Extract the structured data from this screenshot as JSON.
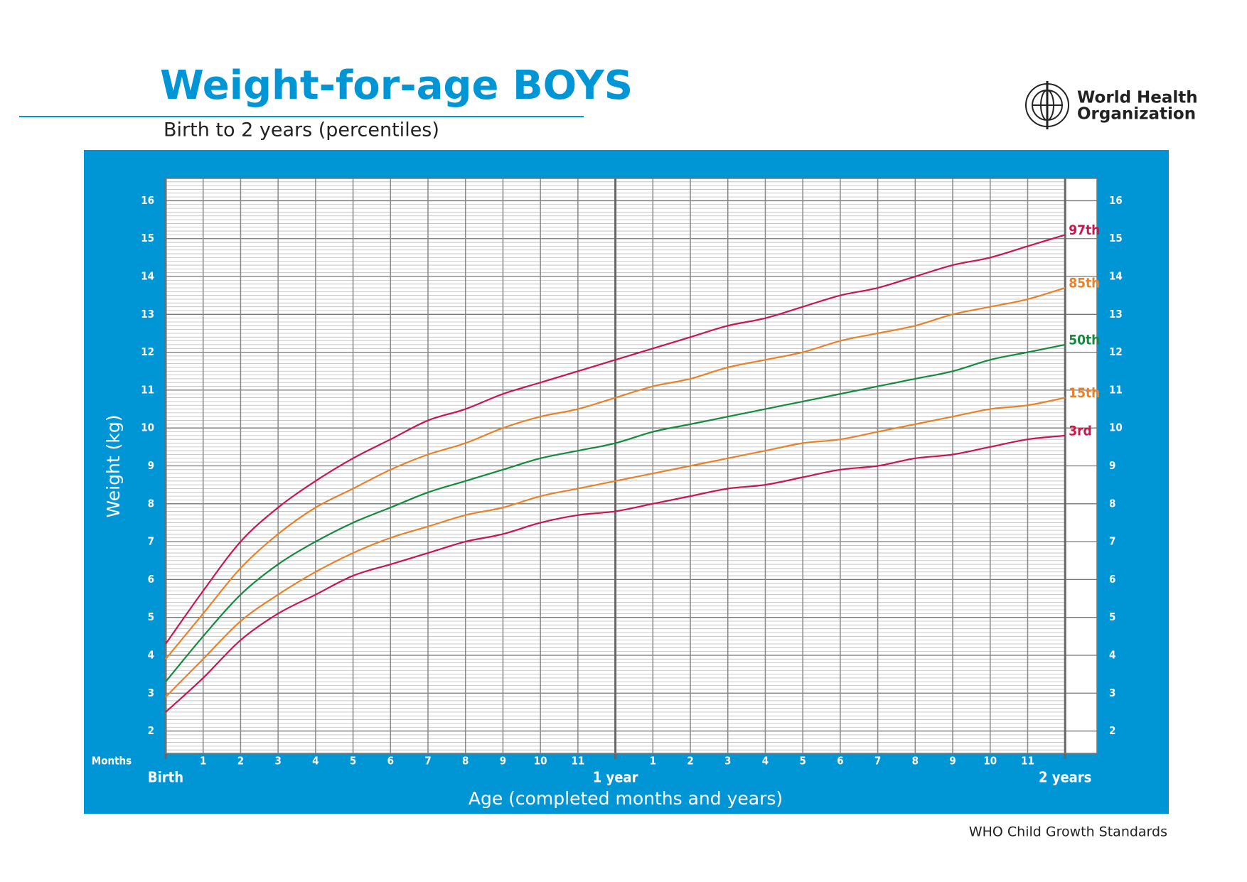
{
  "chart_data": {
    "type": "line",
    "title": "Weight-for-age BOYS",
    "subtitle": "Birth to 2 years (percentiles)",
    "logo_text": [
      "World Health",
      "Organization"
    ],
    "footer": "WHO Child Growth Standards",
    "y_label": "Weight (kg)",
    "x_label": "Age (completed months and years)",
    "x_unit_label": "Months",
    "x": [
      0,
      1,
      2,
      3,
      4,
      5,
      6,
      7,
      8,
      9,
      10,
      11,
      12,
      13,
      14,
      15,
      16,
      17,
      18,
      19,
      20,
      21,
      22,
      23,
      24
    ],
    "series": [
      {
        "name": "3rd",
        "color": "#c8174d",
        "values": [
          2.5,
          3.4,
          4.4,
          5.1,
          5.6,
          6.1,
          6.4,
          6.7,
          7.0,
          7.2,
          7.5,
          7.7,
          7.8,
          8.0,
          8.2,
          8.4,
          8.5,
          8.7,
          8.9,
          9.0,
          9.2,
          9.3,
          9.5,
          9.7,
          9.8
        ]
      },
      {
        "name": "15th",
        "color": "#e8822a",
        "values": [
          2.9,
          3.9,
          4.9,
          5.6,
          6.2,
          6.7,
          7.1,
          7.4,
          7.7,
          7.9,
          8.2,
          8.4,
          8.6,
          8.8,
          9.0,
          9.2,
          9.4,
          9.6,
          9.7,
          9.9,
          10.1,
          10.3,
          10.5,
          10.6,
          10.8
        ]
      },
      {
        "name": "50th",
        "color": "#138a3e",
        "values": [
          3.3,
          4.5,
          5.6,
          6.4,
          7.0,
          7.5,
          7.9,
          8.3,
          8.6,
          8.9,
          9.2,
          9.4,
          9.6,
          9.9,
          10.1,
          10.3,
          10.5,
          10.7,
          10.9,
          11.1,
          11.3,
          11.5,
          11.8,
          12.0,
          12.2
        ]
      },
      {
        "name": "85th",
        "color": "#e8822a",
        "values": [
          3.9,
          5.1,
          6.3,
          7.2,
          7.9,
          8.4,
          8.9,
          9.3,
          9.6,
          10.0,
          10.3,
          10.5,
          10.8,
          11.1,
          11.3,
          11.6,
          11.8,
          12.0,
          12.3,
          12.5,
          12.7,
          13.0,
          13.2,
          13.4,
          13.7
        ]
      },
      {
        "name": "97th",
        "color": "#c8174d",
        "values": [
          4.3,
          5.7,
          7.0,
          7.9,
          8.6,
          9.2,
          9.7,
          10.2,
          10.5,
          10.9,
          11.2,
          11.5,
          11.8,
          12.1,
          12.4,
          12.7,
          12.9,
          13.2,
          13.5,
          13.7,
          14.0,
          14.3,
          14.5,
          14.8,
          15.1
        ]
      }
    ],
    "xlim": [
      0,
      24.85
    ],
    "ylim": [
      1.41,
      16.59
    ],
    "xticks": [
      1,
      2,
      3,
      4,
      5,
      6,
      7,
      8,
      9,
      10,
      11,
      {
        "value": 13,
        "label": "1"
      },
      {
        "value": 14,
        "label": "2"
      },
      {
        "value": 15,
        "label": "3"
      },
      {
        "value": 16,
        "label": "4"
      },
      {
        "value": 17,
        "label": "5"
      },
      {
        "value": 18,
        "label": "6"
      },
      {
        "value": 19,
        "label": "7"
      },
      {
        "value": 20,
        "label": "8"
      },
      {
        "value": 21,
        "label": "9"
      },
      {
        "value": 22,
        "label": "10"
      },
      {
        "value": 23,
        "label": "11"
      }
    ],
    "xticks_major": [
      {
        "value": 0,
        "label": "Birth"
      },
      {
        "value": 12,
        "label": "1 year"
      },
      {
        "value": 24,
        "label": "2 years"
      }
    ],
    "yticks": [
      2,
      3,
      4,
      5,
      6,
      7,
      8,
      9,
      10,
      11,
      12,
      13,
      14,
      15,
      16
    ],
    "yminor_step": 0.1,
    "grid": true,
    "background": "#0096d6"
  }
}
